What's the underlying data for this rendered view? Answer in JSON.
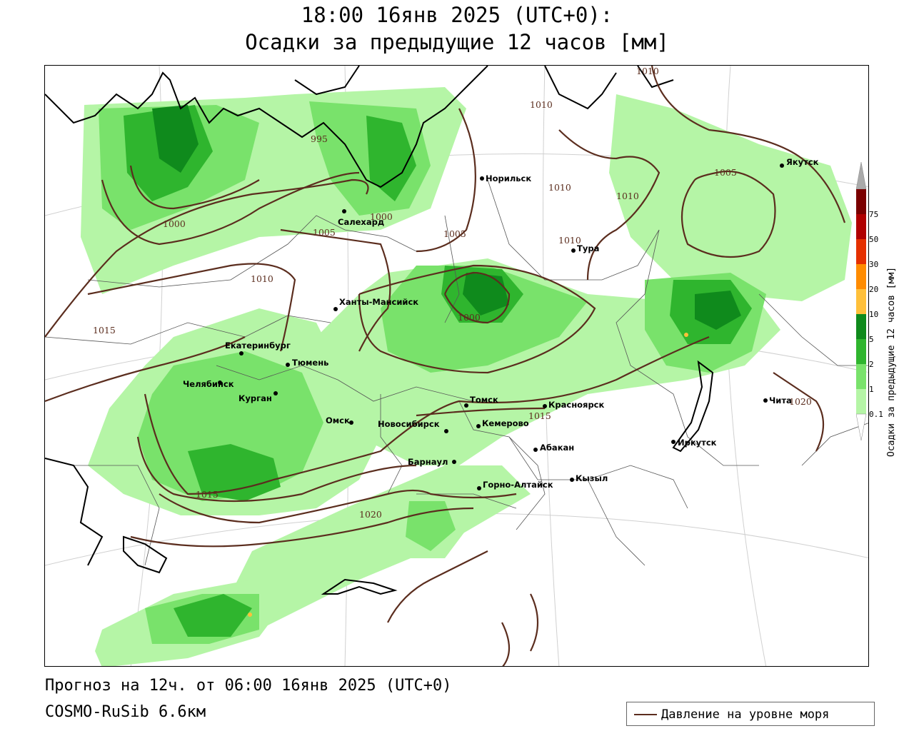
{
  "title": {
    "line1": "18:00 16янв 2025 (UTC+0):",
    "line2": "Осадки за предыдущие 12 часов [мм]"
  },
  "footer": {
    "forecast": "Прогноз на 12ч. от 06:00 16янв 2025 (UTC+0)",
    "model": "COSMO-RuSib 6.6км"
  },
  "legend": {
    "label": "Давление на уровне моря",
    "line_color": "#5b2d1e"
  },
  "colorbar": {
    "title": "Осадки за предыдущие 12 часов [мм]",
    "levels": [
      "0.1",
      "1",
      "2",
      "5",
      "10",
      "20",
      "30",
      "50",
      "75"
    ],
    "colors": [
      "#b5f5a6",
      "#79e26b",
      "#2fb52e",
      "#0f8a1c",
      "#ffc03a",
      "#ff8c00",
      "#e53000",
      "#b00000",
      "#7a0000"
    ]
  },
  "cities": [
    {
      "name": "Норильск"
    },
    {
      "name": "Якутск"
    },
    {
      "name": "Салехард"
    },
    {
      "name": "Тура"
    },
    {
      "name": "Ханты-Мансийск"
    },
    {
      "name": "Екатеринбург"
    },
    {
      "name": "Тюмень"
    },
    {
      "name": "Челябинск"
    },
    {
      "name": "Курган"
    },
    {
      "name": "Омск"
    },
    {
      "name": "Новосибирск"
    },
    {
      "name": "Томск"
    },
    {
      "name": "Кемерово"
    },
    {
      "name": "Красноярск"
    },
    {
      "name": "Барнаул"
    },
    {
      "name": "Абакан"
    },
    {
      "name": "Горно-Алтайск"
    },
    {
      "name": "Кызыл"
    },
    {
      "name": "Иркутск"
    },
    {
      "name": "Чита"
    }
  ],
  "isobars": [
    "995",
    "1000",
    "1000",
    "1000",
    "1005",
    "1005",
    "1005",
    "1010",
    "1010",
    "1010",
    "1010",
    "1010",
    "1010",
    "1015",
    "1015",
    "1015",
    "1020",
    "1020"
  ]
}
